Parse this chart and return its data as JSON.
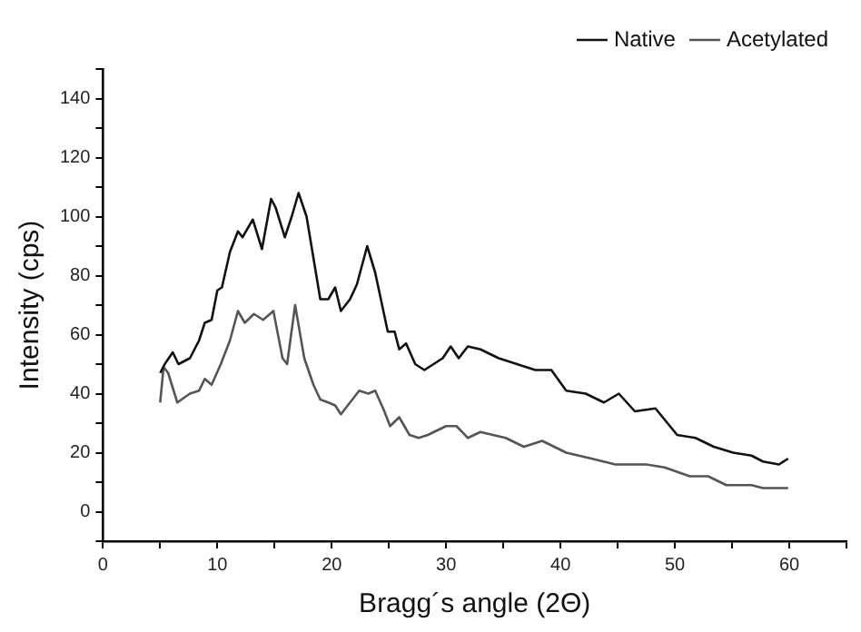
{
  "chart_data": {
    "type": "line",
    "xlabel": "Bragg´s angle (2Θ)",
    "ylabel": "Intensity (cps)",
    "xlim": [
      0,
      65
    ],
    "xticks": [
      0,
      {
        "value": 5,
        "label": null
      },
      10,
      {
        "value": 15,
        "label": null
      },
      20,
      {
        "value": 25,
        "label": null
      },
      30,
      {
        "value": 35,
        "label": null
      },
      40,
      {
        "value": 45,
        "label": null
      },
      50,
      {
        "value": 55,
        "label": null
      },
      60,
      {
        "value": 65,
        "label": null
      }
    ],
    "ylim": [
      -10,
      150
    ],
    "yticks": [
      {
        "value": -10,
        "label": null
      },
      0,
      {
        "value": 10,
        "label": null
      },
      20,
      {
        "value": 30,
        "label": null
      },
      40,
      {
        "value": 50,
        "label": null
      },
      60,
      {
        "value": 70,
        "label": null
      },
      80,
      {
        "value": 90,
        "label": null
      },
      100,
      {
        "value": 110,
        "label": null
      },
      120,
      {
        "value": 130,
        "label": null
      },
      140,
      {
        "value": 150,
        "label": null
      }
    ],
    "grid": false,
    "legend": "top right",
    "marker": "none",
    "line_style": "solid",
    "series": [
      {
        "name": "Native",
        "color": "#111111",
        "x": [
          5.0,
          5.4,
          6.1,
          6.6,
          7.6,
          8.4,
          8.9,
          9.5,
          10,
          10.4,
          11.1,
          11.8,
          12.2,
          13.1,
          13.9,
          14.7,
          15.1,
          15.9,
          16.5,
          17.1,
          17.8,
          19,
          19.7,
          20.3,
          20.8,
          21.6,
          22.2,
          23.1,
          23.8,
          24.9,
          25.5,
          25.9,
          26.5,
          27.3,
          28.1,
          28.9,
          29.7,
          30.4,
          31.1,
          31.9,
          33,
          34.6,
          36.2,
          37.8,
          39.2,
          40.5,
          42.2,
          43.8,
          45.1,
          46.5,
          48.3,
          50.2,
          51.8,
          53.4,
          55.1,
          56.7,
          57.7,
          59.1,
          59.9
        ],
        "values": [
          47,
          50,
          54,
          50,
          52,
          58,
          64,
          65,
          75,
          76,
          88,
          95,
          93,
          99,
          89,
          106,
          103,
          93,
          100,
          108,
          100,
          72,
          72,
          76,
          68,
          72,
          77,
          90,
          81,
          61,
          61,
          55,
          57,
          50,
          48,
          50,
          52,
          56,
          52,
          56,
          55,
          52,
          50,
          48,
          48,
          41,
          40,
          37,
          40,
          34,
          35,
          26,
          25,
          22,
          20,
          19,
          17,
          16,
          18
        ]
      },
      {
        "name": "Acetylated",
        "color": "#555555",
        "x": [
          5.0,
          5.3,
          5.7,
          6.5,
          7.6,
          8.4,
          8.9,
          9.5,
          10.3,
          11.1,
          11.8,
          12.4,
          13.2,
          14,
          14.9,
          15.7,
          16.1,
          16.8,
          17.6,
          18.4,
          19,
          19.7,
          20.3,
          20.8,
          21.6,
          22.4,
          23.2,
          23.8,
          24.6,
          25.1,
          25.9,
          26.8,
          27.6,
          28.4,
          30,
          30.9,
          31.9,
          33,
          35.2,
          36.8,
          38.4,
          40.5,
          42.7,
          44.8,
          47.5,
          49.1,
          51.3,
          52.9,
          54.5,
          56.7,
          57.7,
          59.9
        ],
        "values": [
          37,
          49,
          47,
          37,
          40,
          41,
          45,
          43,
          50,
          58,
          68,
          64,
          67,
          65,
          68,
          52,
          50,
          70,
          52,
          43,
          38,
          37,
          36,
          33,
          37,
          41,
          40,
          41,
          34,
          29,
          32,
          26,
          25,
          26,
          29,
          29,
          25,
          27,
          25,
          22,
          24,
          20,
          18,
          16,
          16,
          15,
          12,
          12,
          9,
          9,
          8,
          8
        ]
      }
    ]
  }
}
